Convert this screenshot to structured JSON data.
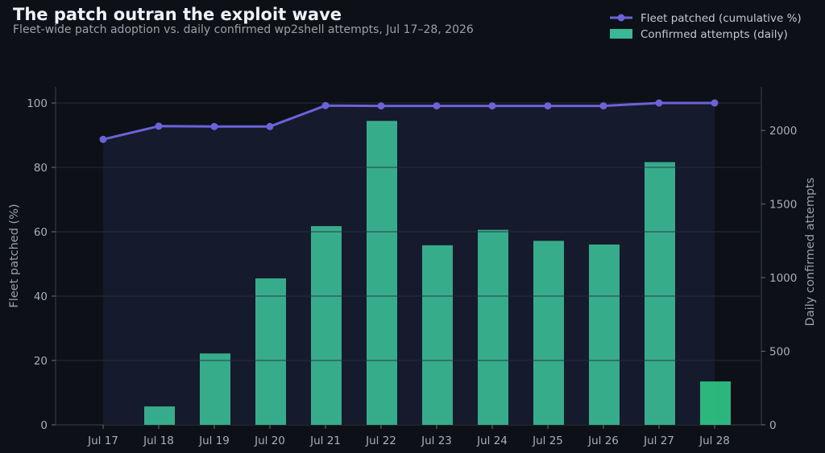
{
  "title": "The patch outran the exploit wave",
  "subtitle": "Fleet-wide patch adoption vs. daily confirmed wp2shell attempts, Jul 17–28, 2026",
  "colors": {
    "background": "#0d1017",
    "plot_background": "#161b2e",
    "line": "#6b63d8",
    "bar": "#3bb894",
    "bar_last": "#2fc487",
    "grid": "#2a2f3d"
  },
  "chart_data": {
    "type": "bar+line",
    "categories": [
      "Jul 17",
      "Jul 18",
      "Jul 19",
      "Jul 20",
      "Jul 21",
      "Jul 22",
      "Jul 23",
      "Jul 24",
      "Jul 25",
      "Jul 26",
      "Jul 27",
      "Jul 28"
    ],
    "series": [
      {
        "name": "Fleet patched (cumulative %)",
        "type": "line",
        "axis": "left",
        "values": [
          88.7,
          92.8,
          92.7,
          92.7,
          99.2,
          99.1,
          99.1,
          99.1,
          99.1,
          99.1,
          100.0,
          100.0
        ]
      },
      {
        "name": "Confirmed attempts (daily)",
        "type": "bar",
        "axis": "right",
        "values": [
          0,
          125,
          485,
          995,
          1350,
          2065,
          1220,
          1325,
          1250,
          1225,
          1785,
          295
        ]
      }
    ],
    "ylabel": "Fleet patched (%)",
    "y2label": "Daily confirmed attempts",
    "ylim": [
      0,
      105
    ],
    "y2lim": [
      0,
      2296
    ],
    "yticks": [
      "0",
      "20",
      "40",
      "60",
      "80",
      "100"
    ],
    "y2ticks": [
      "0",
      "500",
      "1000",
      "1500",
      "2000"
    ],
    "grid": true,
    "legend_position": "top-right"
  }
}
